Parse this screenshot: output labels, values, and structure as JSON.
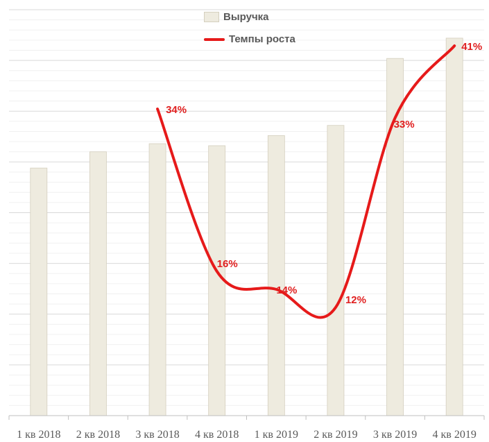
{
  "chart_data": {
    "type": "bar",
    "title": "",
    "xlabel": "",
    "ylabel": "",
    "ylim": [
      0,
      100
    ],
    "grid": true,
    "legend": "top-center",
    "categories": [
      "1 кв 2018",
      "2 кв 2018",
      "3 кв 2018",
      "4 кв 2018",
      "1 кв 2019",
      "2 кв 2019",
      "3 кв 2019",
      "4 кв 2019"
    ],
    "series": [
      {
        "name": "Выручка",
        "kind": "bar",
        "color": "#eeebdf",
        "values": [
          61,
          65,
          67,
          66.5,
          69,
          71.5,
          88,
          93
        ]
      },
      {
        "name": "Темпы роста",
        "kind": "line",
        "color": "#e61a1a",
        "values": [
          null,
          null,
          34,
          16,
          14,
          12,
          33,
          41
        ],
        "labels": [
          null,
          null,
          "34%",
          "16%",
          "14%",
          "12%",
          "33%",
          "41%"
        ],
        "ylim": [
          0,
          45
        ]
      }
    ]
  }
}
